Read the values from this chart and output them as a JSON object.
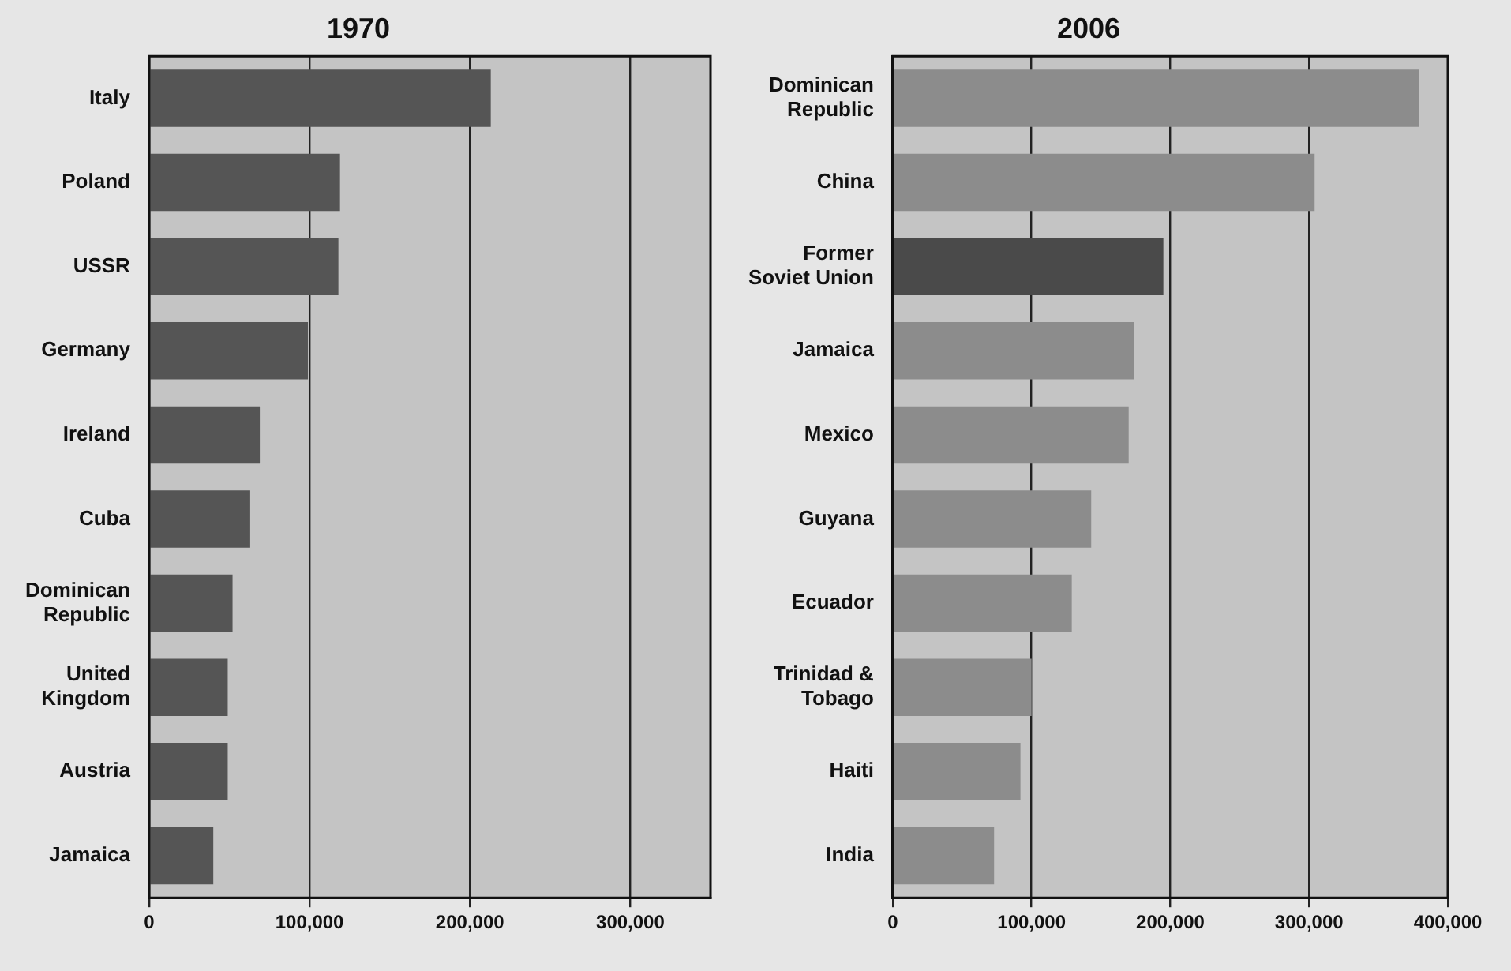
{
  "chart_data": [
    {
      "type": "bar",
      "orientation": "horizontal",
      "title": "1970",
      "categories": [
        "Italy",
        "Poland",
        "USSR",
        "Germany",
        "Ireland",
        "Cuba",
        "Dominican Republic",
        "United Kingdom",
        "Austria",
        "Jamaica"
      ],
      "values": [
        213000,
        119000,
        118000,
        99000,
        69000,
        63000,
        52000,
        49000,
        49000,
        40000
      ],
      "colors": [
        "#555555",
        "#555555",
        "#555555",
        "#555555",
        "#555555",
        "#555555",
        "#555555",
        "#555555",
        "#555555",
        "#555555"
      ],
      "xlim": [
        0,
        350000
      ],
      "xticks": [
        0,
        {
          "value": 100000,
          "label": "100,000"
        },
        {
          "value": 200000,
          "label": "200,000"
        },
        {
          "value": 300000,
          "label": "300,000"
        }
      ],
      "grid": "x",
      "legend": false
    },
    {
      "type": "bar",
      "orientation": "horizontal",
      "title": "2006",
      "categories": [
        "Dominican Republic",
        "China",
        "Former Soviet Union",
        "Jamaica",
        "Mexico",
        "Guyana",
        "Ecuador",
        "Trinidad & Tobago",
        "Haiti",
        "India"
      ],
      "values": [
        379000,
        304000,
        195000,
        174000,
        170000,
        143000,
        129000,
        100000,
        92000,
        73000
      ],
      "colors": [
        "#8c8c8c",
        "#8c8c8c",
        "#4a4a4a",
        "#8c8c8c",
        "#8c8c8c",
        "#8c8c8c",
        "#8c8c8c",
        "#8c8c8c",
        "#8c8c8c",
        "#8c8c8c"
      ],
      "xlim": [
        0,
        400000
      ],
      "xticks": [
        0,
        {
          "value": 100000,
          "label": "100,000"
        },
        {
          "value": 200000,
          "label": "200,000"
        },
        {
          "value": 300000,
          "label": "300,000"
        },
        {
          "value": 400000,
          "label": "400,000"
        }
      ],
      "grid": "x",
      "legend": false
    }
  ]
}
